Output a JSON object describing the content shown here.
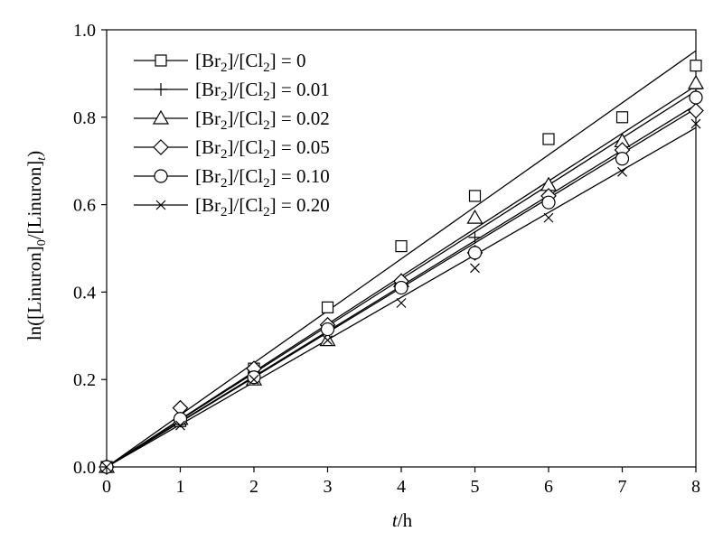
{
  "chart_data": {
    "type": "scatter",
    "title": "",
    "xlabel": "t/h",
    "xlabel_parts": {
      "var": "t",
      "unit": "/h"
    },
    "ylabel": "ln([Linuron]0/[Linuron]t)",
    "ylabel_parts": {
      "a": "ln([Linuron]",
      "b": "0",
      "c": "/[Linuron]",
      "d": "t",
      "e": ")"
    },
    "xlim": [
      0,
      8
    ],
    "ylim": [
      0,
      1.0
    ],
    "xticks": [
      "0",
      "1",
      "2",
      "3",
      "4",
      "5",
      "6",
      "7",
      "8"
    ],
    "yticks": [
      "0.0",
      "0.2",
      "0.4",
      "0.6",
      "0.8",
      "1.0"
    ],
    "grid": false,
    "legend_position": "top-left",
    "x": [
      0,
      1,
      2,
      3,
      4,
      5,
      6,
      7,
      8
    ],
    "series": [
      {
        "name": "[Br2]/[Cl2] = 0",
        "label_parts": [
          "[Br",
          "2",
          "]/[Cl",
          "2",
          "] = 0"
        ],
        "marker": "square",
        "values": [
          0,
          0.105,
          0.225,
          0.365,
          0.505,
          0.62,
          0.75,
          0.8,
          0.918
        ],
        "fit_slope": 0.119
      },
      {
        "name": "[Br2]/[Cl2] = 0.01",
        "label_parts": [
          "[Br",
          "2",
          "]/[Cl",
          "2",
          "] = 0.01"
        ],
        "marker": "plus",
        "values": [
          0,
          0.105,
          0.215,
          0.31,
          0.41,
          0.525,
          0.635,
          0.735,
          0.865
        ],
        "fit_slope": 0.1075
      },
      {
        "name": "[Br2]/[Cl2] = 0.02",
        "label_parts": [
          "[Br",
          "2",
          "]/[Cl",
          "2",
          "] = 0.02"
        ],
        "marker": "triangle",
        "values": [
          0,
          0.11,
          0.2,
          0.29,
          0.425,
          0.57,
          0.645,
          0.745,
          0.878
        ],
        "fit_slope": 0.109
      },
      {
        "name": "[Br2]/[Cl2] = 0.05",
        "label_parts": [
          "[Br",
          "2",
          "]/[Cl",
          "2",
          "] = 0.05"
        ],
        "marker": "diamond",
        "values": [
          0,
          0.135,
          0.225,
          0.325,
          0.425,
          0.49,
          0.62,
          0.725,
          0.815
        ],
        "fit_slope": 0.1035
      },
      {
        "name": "[Br2]/[Cl2] = 0.10",
        "label_parts": [
          "[Br",
          "2",
          "]/[Cl",
          "2",
          "] = 0.10"
        ],
        "marker": "circle",
        "values": [
          0,
          0.11,
          0.205,
          0.315,
          0.41,
          0.49,
          0.605,
          0.705,
          0.845
        ],
        "fit_slope": 0.1025
      },
      {
        "name": "[Br2]/[Cl2] = 0.20",
        "label_parts": [
          "[Br",
          "2",
          "]/[Cl",
          "2",
          "] = 0.20"
        ],
        "marker": "cross",
        "values": [
          0,
          0.095,
          0.2,
          0.29,
          0.375,
          0.455,
          0.57,
          0.675,
          0.785
        ],
        "fit_slope": 0.097
      }
    ]
  }
}
